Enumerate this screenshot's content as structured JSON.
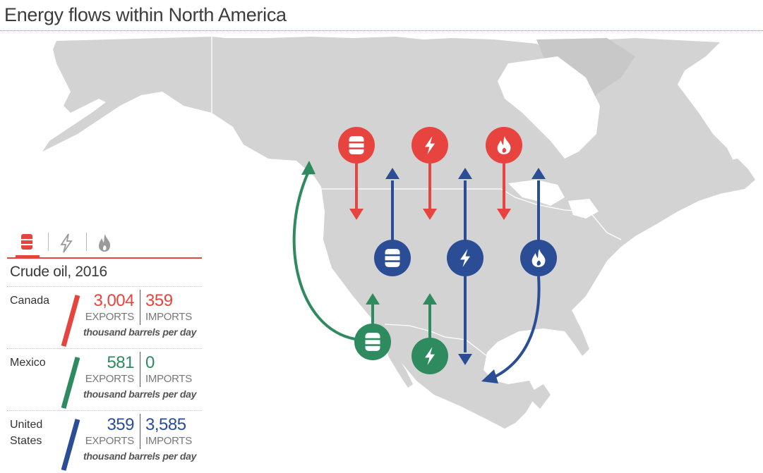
{
  "title": "Energy flows within North America",
  "colors": {
    "canada": "#e8443f",
    "mexico": "#2e8a5f",
    "united_states": "#2b4d96",
    "land": "#d3d3d3",
    "inactive_tab": "#9a9a9a"
  },
  "tabs": [
    {
      "icon": "oil-barrel-icon",
      "active": true
    },
    {
      "icon": "lightning-icon",
      "active": false
    },
    {
      "icon": "flame-icon",
      "active": false
    }
  ],
  "panel": {
    "heading": "Crude oil, 2016",
    "rows": [
      {
        "country": "Canada",
        "exports": "3,004",
        "imports": "359",
        "exports_label": "EXPORTS",
        "imports_label": "IMPORTS",
        "unit": "thousand barrels per day"
      },
      {
        "country": "Mexico",
        "exports": "581",
        "imports": "0",
        "exports_label": "EXPORTS",
        "imports_label": "IMPORTS",
        "unit": "thousand barrels per day"
      },
      {
        "country": "United States",
        "exports": "359",
        "imports": "3,585",
        "exports_label": "EXPORTS",
        "imports_label": "IMPORTS",
        "unit": "thousand barrels per day"
      }
    ]
  },
  "flow_icons": {
    "canada": [
      "oil-barrel-icon",
      "lightning-icon",
      "flame-icon"
    ],
    "united_states": [
      "oil-barrel-icon",
      "lightning-icon",
      "flame-icon"
    ],
    "mexico": [
      "oil-barrel-icon",
      "lightning-icon"
    ]
  }
}
